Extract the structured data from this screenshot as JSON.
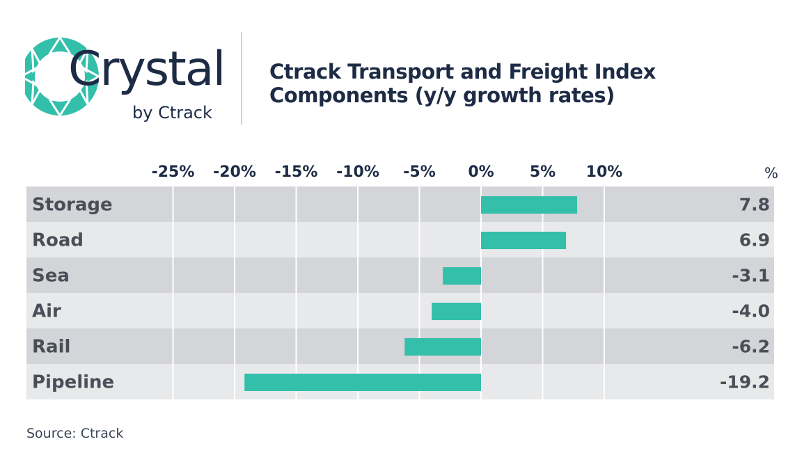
{
  "logo": {
    "word": "Crystal",
    "sub": "by Ctrack"
  },
  "title_lines": [
    "Ctrack Transport and Freight Index",
    "Components (y/y growth rates)"
  ],
  "source": "Source: Ctrack",
  "colors": {
    "bar": "#34bfab",
    "row_dark": "#d3d5d9",
    "row_light": "#e8e9eb",
    "text": "#1d2b45",
    "label": "#4a4f57",
    "grid": "#ffffff"
  },
  "chart_data": {
    "type": "bar",
    "orientation": "horizontal",
    "title": "Ctrack Transport and Freight Index Components (y/y growth rates)",
    "categories": [
      "Storage",
      "Road",
      "Sea",
      "Air",
      "Rail",
      "Pipeline"
    ],
    "values": [
      7.8,
      6.9,
      -3.1,
      -4.0,
      -6.2,
      -19.2
    ],
    "value_labels": [
      "7.8",
      "6.9",
      "-3.1",
      "-4.0",
      "-6.2",
      "-19.2"
    ],
    "xticks": [
      -25,
      -20,
      -15,
      -10,
      -5,
      0,
      5,
      10
    ],
    "xtick_labels": [
      "-25%",
      "-20%",
      "-15%",
      "-10%",
      "-5%",
      "0%",
      "5%",
      "10%"
    ],
    "value_column_header": "%",
    "xlim": [
      -25,
      10
    ],
    "grid": true
  }
}
